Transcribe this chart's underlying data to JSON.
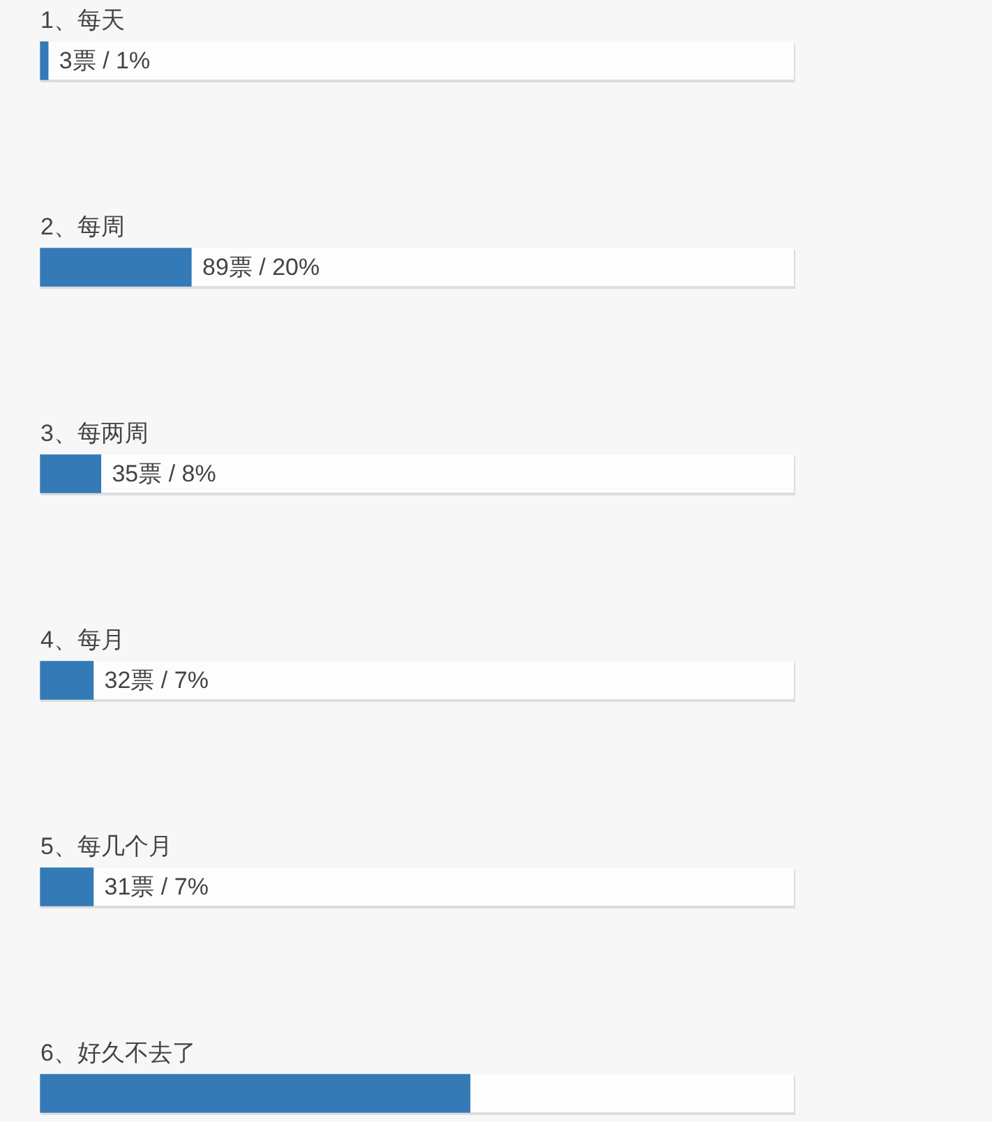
{
  "chart_data": {
    "type": "bar",
    "orientation": "horizontal",
    "categories": [
      "1、每天",
      "2、每周",
      "3、每两周",
      "4、每月",
      "5、每几个月",
      "6、好久不去了"
    ],
    "values": [
      1,
      20,
      8,
      7,
      7,
      57
    ],
    "value_labels": [
      "3票 / 1%",
      "89票 / 20%",
      "35票 / 8%",
      "32票 / 7%",
      "31票 / 7%",
      null
    ],
    "color": "#337ab7",
    "xlim": [
      0,
      100
    ],
    "tick_labels": false
  }
}
